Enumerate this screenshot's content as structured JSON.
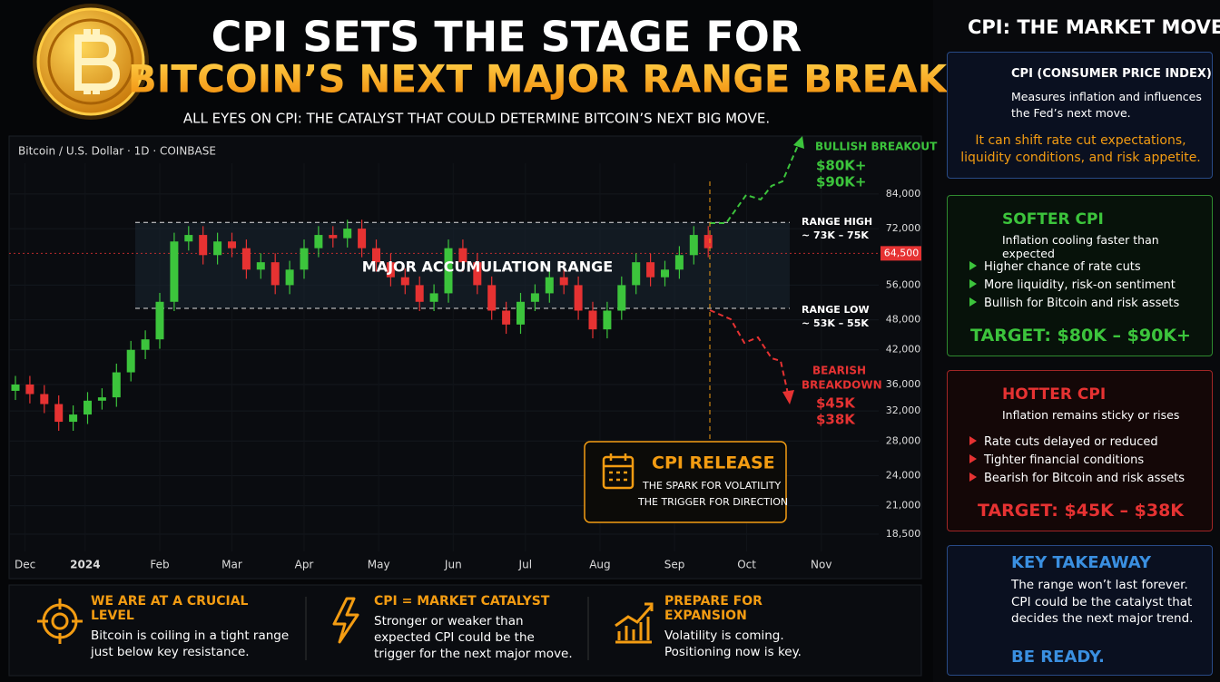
{
  "header": {
    "title_line1": "CPI SETS THE STAGE FOR",
    "title_line2": "BITCOIN’S NEXT MAJOR RANGE BREAK",
    "subtitle": "ALL EYES ON CPI: THE CATALYST THAT COULD DETERMINE BITCOIN’S NEXT BIG MOVE."
  },
  "chart_data": {
    "type": "candlestick",
    "title": "Bitcoin / U.S. Dollar · 1D · COINBASE",
    "yscale": "log",
    "xlim": [
      0,
      376
    ],
    "ylim": [
      17000,
      110000
    ],
    "xticks": [
      {
        "value": 4,
        "label": "Dec"
      },
      {
        "value": 29,
        "label": "2024"
      },
      {
        "value": 60,
        "label": "Feb"
      },
      {
        "value": 90,
        "label": "Mar"
      },
      {
        "value": 120,
        "label": "Apr"
      },
      {
        "value": 151,
        "label": "May"
      },
      {
        "value": 182,
        "label": "Jun"
      },
      {
        "value": 212,
        "label": "Jul"
      },
      {
        "value": 243,
        "label": "Aug"
      },
      {
        "value": 274,
        "label": "Sep"
      },
      {
        "value": 304,
        "label": "Oct"
      },
      {
        "value": 335,
        "label": "Nov"
      }
    ],
    "yticks": [
      {
        "value": 18500,
        "label": "18,500"
      },
      {
        "value": 21000,
        "label": "21,000"
      },
      {
        "value": 24000,
        "label": "24,000"
      },
      {
        "value": 28000,
        "label": "28,000"
      },
      {
        "value": 32000,
        "label": "32,000"
      },
      {
        "value": 36000,
        "label": "36,000"
      },
      {
        "value": 42000,
        "label": "42,000"
      },
      {
        "value": 48000,
        "label": "48,000"
      },
      {
        "value": 56000,
        "label": "56,000"
      },
      {
        "value": 72000,
        "label": "72,000"
      },
      {
        "value": 84000,
        "label": "84,000"
      }
    ],
    "x": [
      0,
      6,
      12,
      18,
      24,
      30,
      36,
      42,
      48,
      54,
      60,
      66,
      72,
      78,
      84,
      90,
      96,
      102,
      108,
      114,
      120,
      126,
      132,
      138,
      144,
      150,
      156,
      162,
      168,
      174,
      180,
      186,
      192,
      198,
      204,
      210,
      216,
      222,
      228,
      234,
      240,
      246,
      252,
      258,
      264,
      270,
      276,
      282,
      288
    ],
    "open": [
      35000,
      36000,
      34500,
      33000,
      30500,
      31500,
      33500,
      34000,
      38000,
      42000,
      44000,
      52000,
      68000,
      70000,
      64000,
      68000,
      66000,
      60000,
      62000,
      56000,
      60000,
      66000,
      70000,
      69000,
      72000,
      66000,
      62000,
      58000,
      56000,
      52000,
      54000,
      66000,
      62000,
      56000,
      50000,
      47000,
      52000,
      54000,
      58000,
      56000,
      50000,
      46000,
      50000,
      56000,
      62000,
      58000,
      60000,
      64000,
      70000
    ],
    "high": [
      37400,
      37400,
      35900,
      34300,
      32800,
      34800,
      35400,
      39500,
      43700,
      45800,
      54100,
      70700,
      72800,
      72800,
      70700,
      70700,
      68600,
      64500,
      64500,
      62400,
      68600,
      72800,
      72800,
      74900,
      74900,
      68600,
      64500,
      60300,
      58200,
      56200,
      68600,
      68600,
      64500,
      58200,
      52000,
      54100,
      56200,
      60300,
      60300,
      58200,
      52000,
      52000,
      58200,
      64500,
      64500,
      62400,
      66600,
      72800,
      72800
    ],
    "low": [
      33600,
      33100,
      31700,
      29300,
      29300,
      30200,
      32200,
      32600,
      36500,
      40300,
      42200,
      49900,
      65300,
      61400,
      61400,
      63400,
      57600,
      57600,
      53800,
      53800,
      57600,
      63400,
      66200,
      66200,
      63400,
      59500,
      55700,
      53800,
      49900,
      49900,
      51800,
      59500,
      53800,
      48000,
      45100,
      45100,
      49900,
      51800,
      53800,
      48000,
      44200,
      44200,
      48000,
      53800,
      55700,
      55700,
      57600,
      61400,
      63400
    ],
    "close": [
      36000,
      34500,
      33000,
      30500,
      31500,
      33500,
      34000,
      38000,
      42000,
      44000,
      52000,
      68000,
      70000,
      64000,
      68000,
      66000,
      60000,
      62000,
      56000,
      60000,
      66000,
      70000,
      69000,
      72000,
      66000,
      62000,
      58000,
      56000,
      52000,
      54000,
      66000,
      62000,
      56000,
      50000,
      47000,
      52000,
      54000,
      58000,
      56000,
      50000,
      46000,
      50000,
      56000,
      62000,
      58000,
      60000,
      64000,
      70000,
      66000
    ],
    "up_color": "#3cc43c",
    "down_color": "#e63232",
    "current_price": {
      "value": 64500,
      "label": "64,500"
    },
    "range": {
      "high": 74000,
      "low": 50500,
      "label": "MAJOR ACCUMULATION RANGE",
      "high_title": "RANGE HIGH",
      "high_text": "~ 73K – 75K",
      "low_title": "RANGE LOW",
      "low_text": "~ 53K – 55K"
    },
    "bullish": {
      "title": "BULLISH BREAKOUT",
      "targets": [
        "$80K+",
        "$90K+"
      ]
    },
    "bearish": {
      "title": [
        "BEARISH",
        "BREAKDOWN"
      ],
      "targets": [
        "$45K",
        "$38K"
      ]
    },
    "cpi_release": {
      "title": "CPI RELEASE",
      "lines": [
        "THE SPARK FOR VOLATILITY",
        "THE TRIGGER FOR DIRECTION"
      ]
    }
  },
  "bottom": [
    {
      "title": "WE ARE AT A CRUCIAL LEVEL",
      "text": "Bitcoin is coiling in a tight range just below key resistance."
    },
    {
      "title": "CPI = MARKET CATALYST",
      "text": "Stronger or weaker than expected CPI could be the trigger for the next major move."
    },
    {
      "title": "PREPARE FOR EXPANSION",
      "text": "Volatility is coming. Positioning now is key."
    }
  ],
  "sidebar": {
    "title": "CPI: THE MARKET MOVER",
    "cpi": {
      "title": "CPI (CONSUMER PRICE INDEX)",
      "text": "Measures inflation and influences the Fed’s next move.",
      "note": "It can shift rate cut expectations, liquidity conditions, and risk appetite."
    },
    "softer": {
      "title": "SOFTER CPI",
      "text": "Inflation cooling faster than expected",
      "bullets": [
        "Higher chance of rate cuts",
        "More liquidity, risk-on sentiment",
        "Bullish for Bitcoin and risk assets"
      ],
      "target": "TARGET: $80K – $90K+"
    },
    "hotter": {
      "title": "HOTTER CPI",
      "text": "Inflation remains sticky or rises",
      "bullets": [
        "Rate cuts delayed or reduced",
        "Tighter financial conditions",
        "Bearish for Bitcoin and risk assets"
      ],
      "target": "TARGET: $45K – $38K"
    },
    "takeaway": {
      "title": "KEY TAKEAWAY",
      "text": "The range won’t last forever. CPI could be the catalyst that decides the next major trend.",
      "cta": "BE READY."
    }
  }
}
